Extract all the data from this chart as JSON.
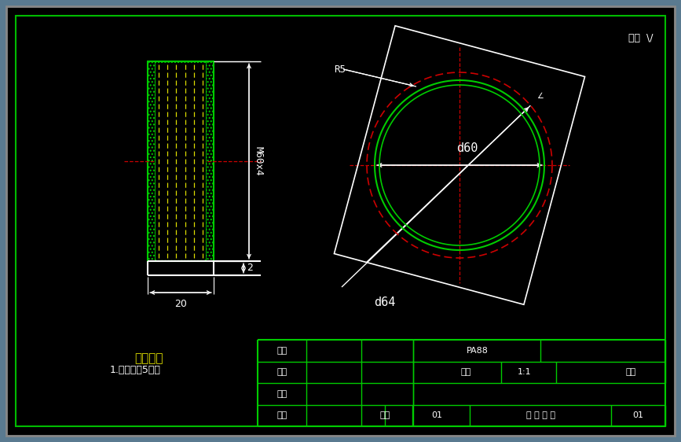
{
  "bg_color": "#000000",
  "outer_border_color": "#888888",
  "inner_border_color": "#00bb00",
  "white": "#ffffff",
  "red": "#cc0000",
  "yellow": "#dddd00",
  "green": "#00cc00",
  "title_text": "其余 \\/ ",
  "r5_label": "R5",
  "phi60_label": "d60",
  "phi64_label": "d64",
  "m60x4_label": "M60x4",
  "dim_20": "20",
  "dim_2": "2",
  "tech_req_title": "技术要求",
  "tech_req_1": "1.制造精度5级；",
  "table_pa88": "PA88",
  "table_bili": "比例",
  "table_scale": "1:1",
  "table_part": "塑件",
  "fig_width": 8.67,
  "fig_height": 5.62,
  "dpi": 100
}
